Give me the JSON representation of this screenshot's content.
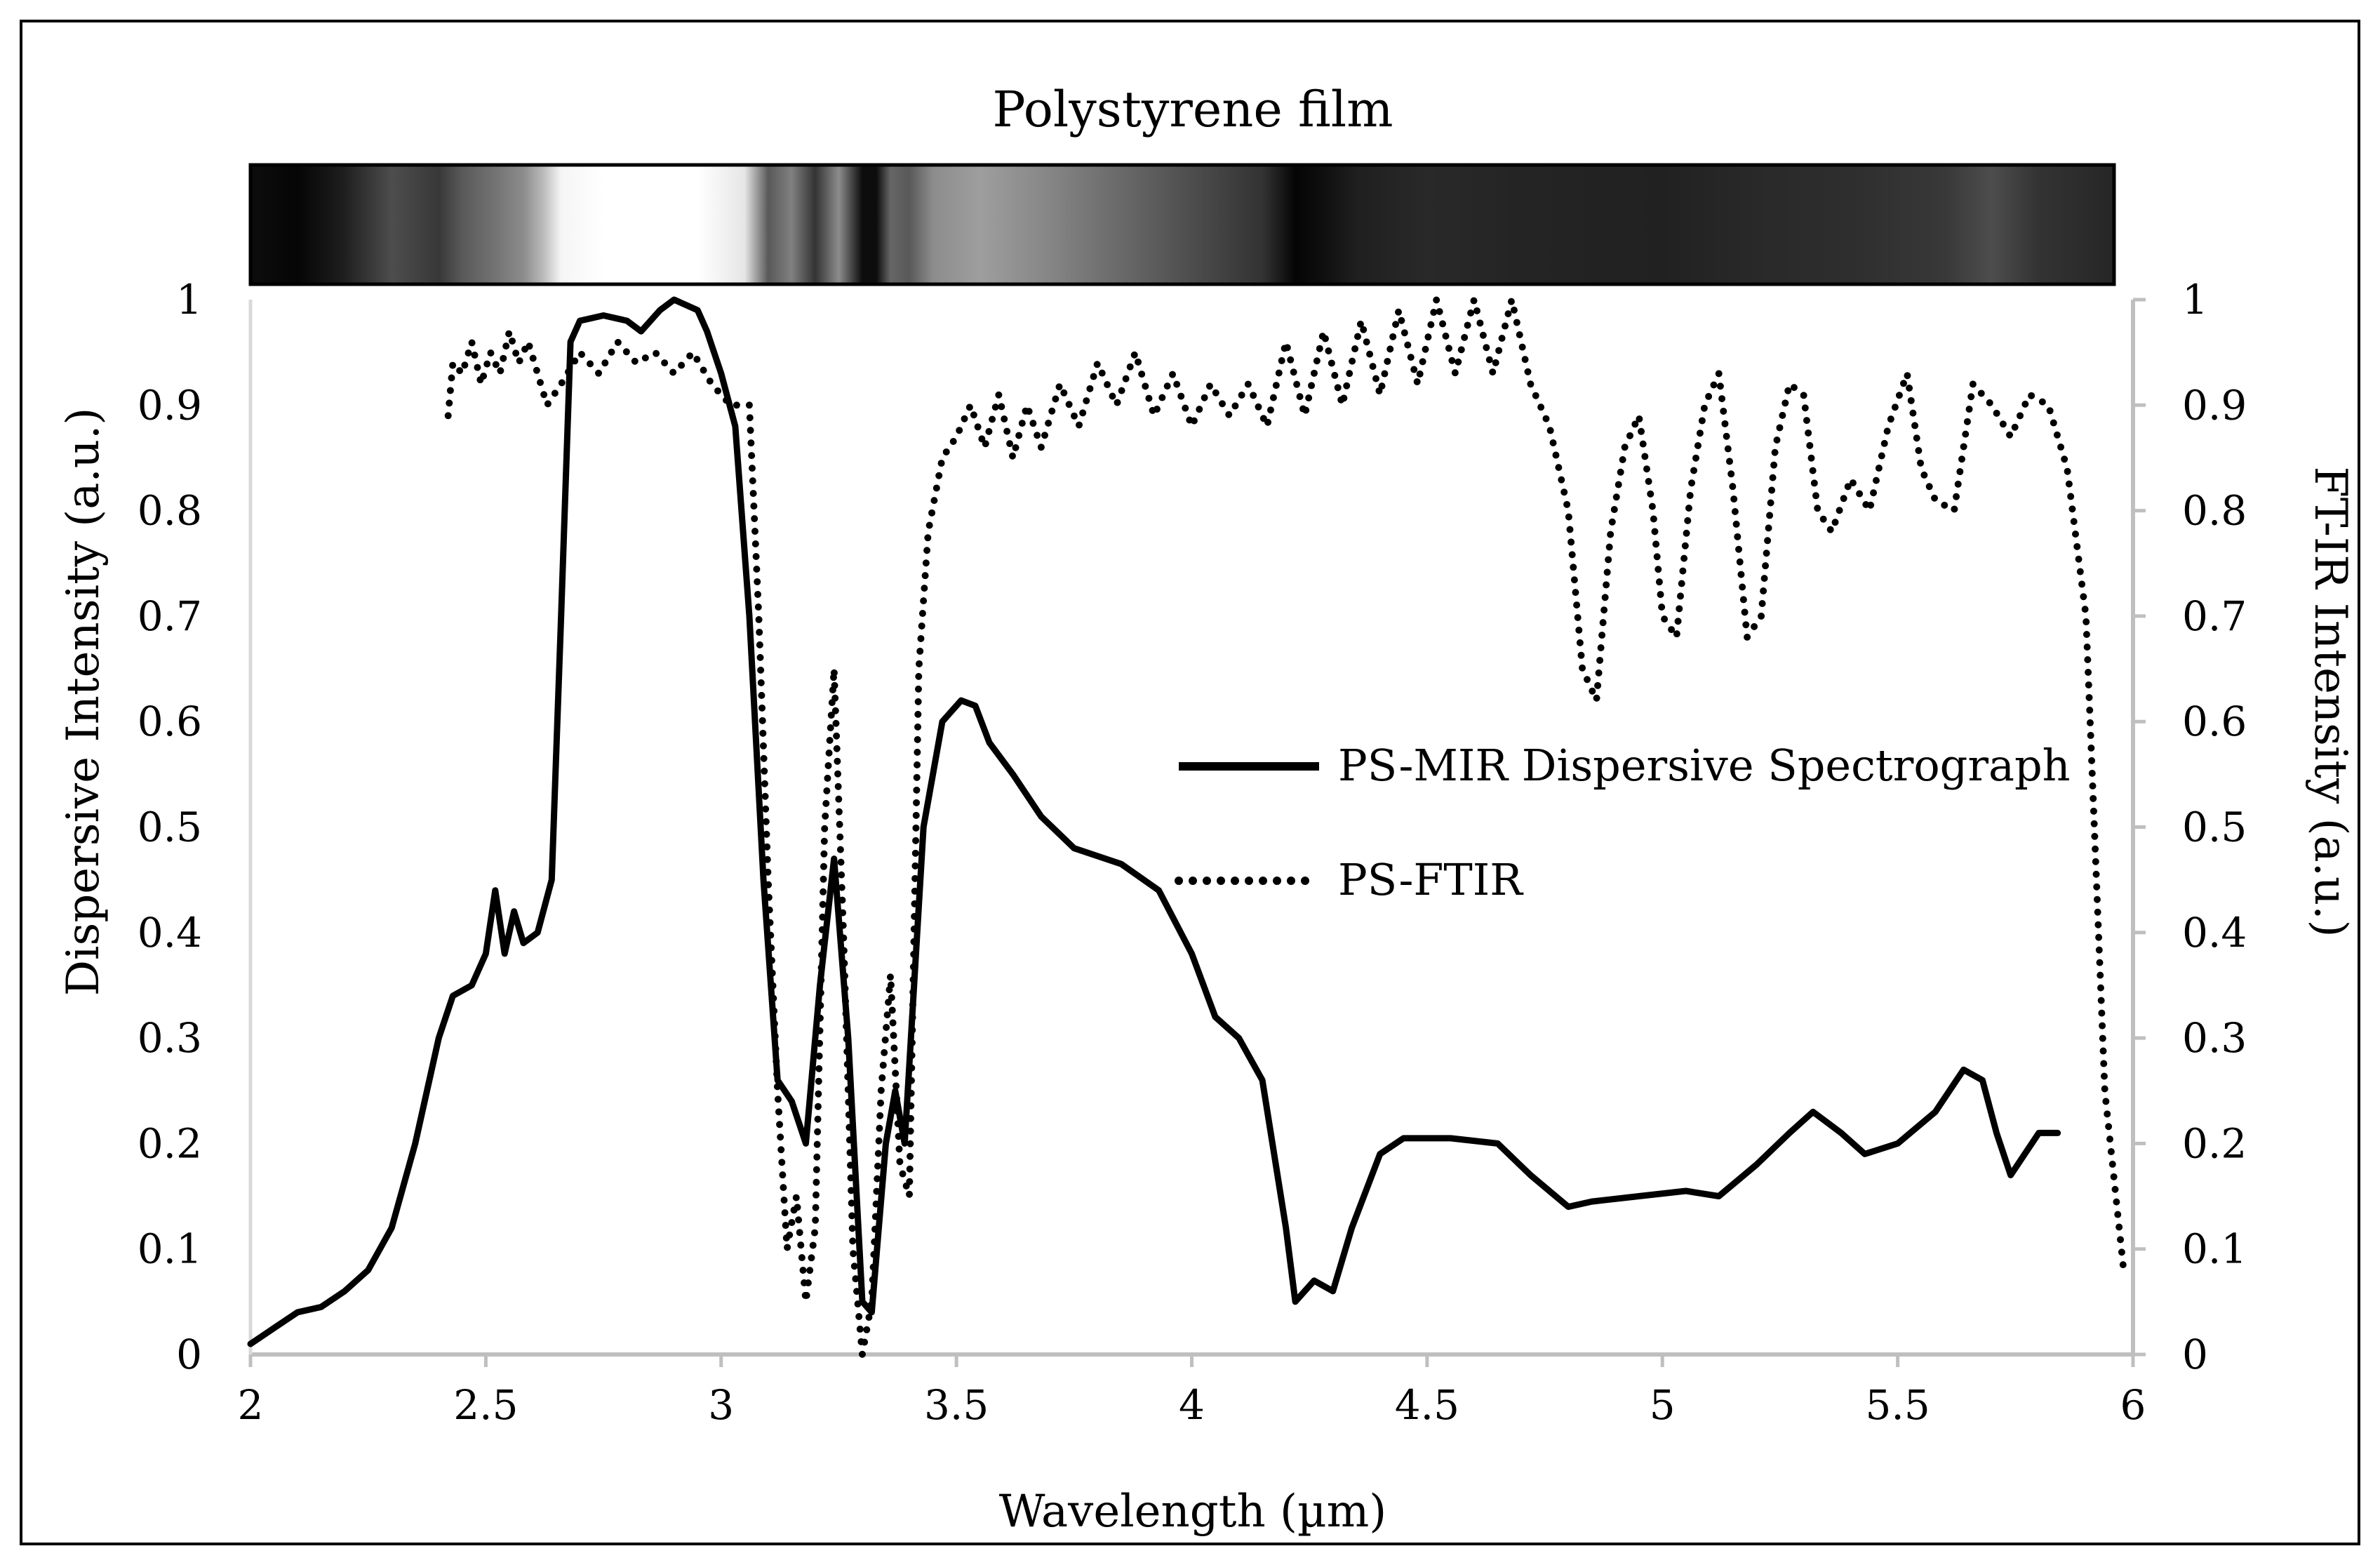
{
  "chart_data": {
    "type": "line",
    "title": "Polystyrene film",
    "xlabel": "Wavelength (µm)",
    "ylabel": "Dispersive Intensity (a.u.)",
    "y2label": "FT-IR Intensity (a.u.)",
    "xlim": [
      2,
      6
    ],
    "ylim": [
      0,
      1
    ],
    "y2lim": [
      0,
      1
    ],
    "x_ticks": [
      "2",
      "2.5",
      "3",
      "3.5",
      "4",
      "4.5",
      "5",
      "5.5",
      "6"
    ],
    "y_ticks": [
      "0",
      "0.1",
      "0.2",
      "0.3",
      "0.4",
      "0.5",
      "0.6",
      "0.7",
      "0.8",
      "0.9",
      "1"
    ],
    "y2_ticks": [
      "0",
      "0.1",
      "0.2",
      "0.3",
      "0.4",
      "0.5",
      "0.6",
      "0.7",
      "0.8",
      "0.9",
      "1"
    ],
    "grid": false,
    "legend_position": "center-right",
    "spectrum_strip": {
      "description": "grayscale intensity image of dispersed spectrum, 2–6 µm",
      "stops": [
        [
          2.0,
          0.05
        ],
        [
          2.1,
          0.02
        ],
        [
          2.2,
          0.12
        ],
        [
          2.3,
          0.3
        ],
        [
          2.4,
          0.22
        ],
        [
          2.45,
          0.35
        ],
        [
          2.52,
          0.45
        ],
        [
          2.58,
          0.55
        ],
        [
          2.62,
          0.72
        ],
        [
          2.66,
          0.96
        ],
        [
          2.75,
          1.0
        ],
        [
          2.95,
          1.0
        ],
        [
          3.05,
          0.9
        ],
        [
          3.1,
          0.35
        ],
        [
          3.15,
          0.5
        ],
        [
          3.2,
          0.2
        ],
        [
          3.25,
          0.55
        ],
        [
          3.3,
          0.05
        ],
        [
          3.33,
          0.05
        ],
        [
          3.36,
          0.4
        ],
        [
          3.4,
          0.35
        ],
        [
          3.45,
          0.55
        ],
        [
          3.55,
          0.62
        ],
        [
          3.7,
          0.52
        ],
        [
          4.0,
          0.3
        ],
        [
          4.15,
          0.2
        ],
        [
          4.22,
          0.02
        ],
        [
          4.28,
          0.06
        ],
        [
          4.35,
          0.12
        ],
        [
          4.5,
          0.16
        ],
        [
          4.7,
          0.14
        ],
        [
          5.0,
          0.13
        ],
        [
          5.2,
          0.16
        ],
        [
          5.4,
          0.18
        ],
        [
          5.6,
          0.22
        ],
        [
          5.7,
          0.3
        ],
        [
          5.8,
          0.2
        ],
        [
          5.96,
          0.15
        ]
      ]
    },
    "series": [
      {
        "name": "PS-MIR Dispersive Spectrograph",
        "axis": "left",
        "style": "solid",
        "color": "#000000",
        "points": [
          [
            2.0,
            0.01
          ],
          [
            2.05,
            0.025
          ],
          [
            2.1,
            0.04
          ],
          [
            2.15,
            0.045
          ],
          [
            2.2,
            0.06
          ],
          [
            2.25,
            0.08
          ],
          [
            2.3,
            0.12
          ],
          [
            2.35,
            0.2
          ],
          [
            2.4,
            0.3
          ],
          [
            2.43,
            0.34
          ],
          [
            2.47,
            0.35
          ],
          [
            2.5,
            0.38
          ],
          [
            2.52,
            0.44
          ],
          [
            2.54,
            0.38
          ],
          [
            2.56,
            0.42
          ],
          [
            2.58,
            0.39
          ],
          [
            2.61,
            0.4
          ],
          [
            2.64,
            0.45
          ],
          [
            2.66,
            0.7
          ],
          [
            2.68,
            0.96
          ],
          [
            2.7,
            0.98
          ],
          [
            2.75,
            0.985
          ],
          [
            2.8,
            0.98
          ],
          [
            2.83,
            0.97
          ],
          [
            2.87,
            0.99
          ],
          [
            2.9,
            1.0
          ],
          [
            2.95,
            0.99
          ],
          [
            2.97,
            0.97
          ],
          [
            3.0,
            0.93
          ],
          [
            3.03,
            0.88
          ],
          [
            3.06,
            0.7
          ],
          [
            3.09,
            0.45
          ],
          [
            3.12,
            0.26
          ],
          [
            3.15,
            0.24
          ],
          [
            3.18,
            0.2
          ],
          [
            3.21,
            0.35
          ],
          [
            3.24,
            0.47
          ],
          [
            3.27,
            0.3
          ],
          [
            3.3,
            0.05
          ],
          [
            3.32,
            0.04
          ],
          [
            3.35,
            0.2
          ],
          [
            3.37,
            0.25
          ],
          [
            3.39,
            0.2
          ],
          [
            3.43,
            0.5
          ],
          [
            3.47,
            0.6
          ],
          [
            3.51,
            0.62
          ],
          [
            3.54,
            0.615
          ],
          [
            3.57,
            0.58
          ],
          [
            3.62,
            0.55
          ],
          [
            3.68,
            0.51
          ],
          [
            3.75,
            0.48
          ],
          [
            3.85,
            0.465
          ],
          [
            3.93,
            0.44
          ],
          [
            4.0,
            0.38
          ],
          [
            4.05,
            0.32
          ],
          [
            4.1,
            0.3
          ],
          [
            4.15,
            0.26
          ],
          [
            4.2,
            0.12
          ],
          [
            4.22,
            0.05
          ],
          [
            4.24,
            0.06
          ],
          [
            4.26,
            0.07
          ],
          [
            4.3,
            0.06
          ],
          [
            4.34,
            0.12
          ],
          [
            4.4,
            0.19
          ],
          [
            4.45,
            0.205
          ],
          [
            4.55,
            0.205
          ],
          [
            4.65,
            0.2
          ],
          [
            4.72,
            0.17
          ],
          [
            4.8,
            0.14
          ],
          [
            4.85,
            0.145
          ],
          [
            4.95,
            0.15
          ],
          [
            5.05,
            0.155
          ],
          [
            5.12,
            0.15
          ],
          [
            5.2,
            0.18
          ],
          [
            5.27,
            0.21
          ],
          [
            5.32,
            0.23
          ],
          [
            5.38,
            0.21
          ],
          [
            5.43,
            0.19
          ],
          [
            5.5,
            0.2
          ],
          [
            5.58,
            0.23
          ],
          [
            5.64,
            0.27
          ],
          [
            5.68,
            0.26
          ],
          [
            5.71,
            0.21
          ],
          [
            5.74,
            0.17
          ],
          [
            5.77,
            0.19
          ],
          [
            5.8,
            0.21
          ],
          [
            5.84,
            0.21
          ]
        ]
      },
      {
        "name": "PS-FTIR",
        "axis": "right",
        "style": "dotted",
        "color": "#000000",
        "points": [
          [
            2.42,
            0.89
          ],
          [
            2.43,
            0.94
          ],
          [
            2.45,
            0.93
          ],
          [
            2.47,
            0.96
          ],
          [
            2.49,
            0.92
          ],
          [
            2.51,
            0.95
          ],
          [
            2.53,
            0.93
          ],
          [
            2.55,
            0.97
          ],
          [
            2.57,
            0.94
          ],
          [
            2.59,
            0.96
          ],
          [
            2.61,
            0.93
          ],
          [
            2.63,
            0.9
          ],
          [
            2.66,
            0.92
          ],
          [
            2.7,
            0.95
          ],
          [
            2.74,
            0.93
          ],
          [
            2.78,
            0.96
          ],
          [
            2.82,
            0.94
          ],
          [
            2.86,
            0.95
          ],
          [
            2.9,
            0.93
          ],
          [
            2.94,
            0.95
          ],
          [
            2.98,
            0.92
          ],
          [
            3.02,
            0.9
          ],
          [
            3.06,
            0.9
          ],
          [
            3.08,
            0.7
          ],
          [
            3.1,
            0.45
          ],
          [
            3.12,
            0.25
          ],
          [
            3.14,
            0.1
          ],
          [
            3.16,
            0.15
          ],
          [
            3.18,
            0.05
          ],
          [
            3.2,
            0.12
          ],
          [
            3.22,
            0.5
          ],
          [
            3.24,
            0.65
          ],
          [
            3.26,
            0.4
          ],
          [
            3.28,
            0.1
          ],
          [
            3.3,
            0.0
          ],
          [
            3.32,
            0.05
          ],
          [
            3.34,
            0.25
          ],
          [
            3.36,
            0.36
          ],
          [
            3.38,
            0.18
          ],
          [
            3.4,
            0.15
          ],
          [
            3.42,
            0.65
          ],
          [
            3.44,
            0.78
          ],
          [
            3.47,
            0.85
          ],
          [
            3.5,
            0.87
          ],
          [
            3.53,
            0.9
          ],
          [
            3.56,
            0.86
          ],
          [
            3.59,
            0.91
          ],
          [
            3.62,
            0.85
          ],
          [
            3.65,
            0.9
          ],
          [
            3.68,
            0.86
          ],
          [
            3.72,
            0.92
          ],
          [
            3.76,
            0.88
          ],
          [
            3.8,
            0.94
          ],
          [
            3.84,
            0.9
          ],
          [
            3.88,
            0.95
          ],
          [
            3.92,
            0.89
          ],
          [
            3.96,
            0.93
          ],
          [
            4.0,
            0.88
          ],
          [
            4.04,
            0.92
          ],
          [
            4.08,
            0.89
          ],
          [
            4.12,
            0.92
          ],
          [
            4.16,
            0.88
          ],
          [
            4.2,
            0.96
          ],
          [
            4.24,
            0.89
          ],
          [
            4.28,
            0.97
          ],
          [
            4.32,
            0.9
          ],
          [
            4.36,
            0.98
          ],
          [
            4.4,
            0.91
          ],
          [
            4.44,
            0.99
          ],
          [
            4.48,
            0.92
          ],
          [
            4.52,
            1.0
          ],
          [
            4.56,
            0.93
          ],
          [
            4.6,
            1.0
          ],
          [
            4.64,
            0.93
          ],
          [
            4.68,
            1.0
          ],
          [
            4.72,
            0.92
          ],
          [
            4.76,
            0.88
          ],
          [
            4.8,
            0.8
          ],
          [
            4.83,
            0.65
          ],
          [
            4.86,
            0.62
          ],
          [
            4.89,
            0.78
          ],
          [
            4.92,
            0.86
          ],
          [
            4.95,
            0.89
          ],
          [
            4.98,
            0.8
          ],
          [
            5.0,
            0.7
          ],
          [
            5.03,
            0.68
          ],
          [
            5.06,
            0.82
          ],
          [
            5.09,
            0.9
          ],
          [
            5.12,
            0.93
          ],
          [
            5.15,
            0.82
          ],
          [
            5.18,
            0.68
          ],
          [
            5.21,
            0.7
          ],
          [
            5.24,
            0.86
          ],
          [
            5.27,
            0.92
          ],
          [
            5.3,
            0.91
          ],
          [
            5.33,
            0.8
          ],
          [
            5.36,
            0.78
          ],
          [
            5.4,
            0.83
          ],
          [
            5.44,
            0.8
          ],
          [
            5.48,
            0.88
          ],
          [
            5.52,
            0.93
          ],
          [
            5.55,
            0.84
          ],
          [
            5.58,
            0.81
          ],
          [
            5.62,
            0.8
          ],
          [
            5.66,
            0.92
          ],
          [
            5.7,
            0.9
          ],
          [
            5.74,
            0.87
          ],
          [
            5.78,
            0.91
          ],
          [
            5.82,
            0.9
          ],
          [
            5.86,
            0.84
          ],
          [
            5.9,
            0.7
          ],
          [
            5.94,
            0.25
          ],
          [
            5.98,
            0.08
          ]
        ]
      }
    ]
  }
}
